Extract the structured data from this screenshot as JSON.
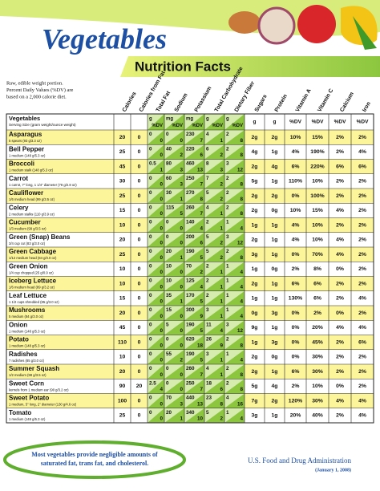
{
  "header": {
    "title": "Vegetables",
    "subtitle": "Nutrition Facts",
    "note": [
      "Raw, edible weight portion.",
      "Percent Daily Values (%DV) are",
      "based on a 2,000 calorie diet."
    ]
  },
  "table": {
    "name_header": "Vegetables",
    "serving_header": "Serving Size (gram weight/ounce weight)",
    "columns": [
      {
        "label": "Calories"
      },
      {
        "label": "Calories from Fat"
      },
      {
        "label": "Total Fat",
        "units": [
          "g",
          "%DV"
        ]
      },
      {
        "label": "Sodium",
        "units": [
          "mg",
          "%DV"
        ]
      },
      {
        "label": "Potassium",
        "units": [
          "mg",
          "%DV"
        ]
      },
      {
        "label": "Total Carbohydrate",
        "units": [
          "g",
          "%DV"
        ]
      },
      {
        "label": "Dietary Fiber",
        "units": [
          "g",
          "%DV"
        ]
      },
      {
        "label": "Sugars",
        "unit": "g"
      },
      {
        "label": "Protein",
        "unit": "g"
      },
      {
        "label": "Vitamin A",
        "unit": "%DV"
      },
      {
        "label": "Vitamin C",
        "unit": "%DV"
      },
      {
        "label": "Calcium",
        "unit": "%DV"
      },
      {
        "label": "Iron",
        "unit": "%DV"
      }
    ],
    "rows": [
      {
        "name": "Asparagus",
        "serving": "5 spears (93 g/3.3 oz)",
        "cells": [
          "20",
          "0",
          [
            "0",
            "0"
          ],
          [
            "0",
            "0"
          ],
          [
            "230",
            "7"
          ],
          [
            "4",
            "1"
          ],
          [
            "2",
            "8"
          ],
          "2g",
          "2g",
          "10%",
          "15%",
          "2%",
          "2%"
        ]
      },
      {
        "name": "Bell Pepper",
        "serving": "1 medium (148 g/5.3 oz)",
        "cells": [
          "25",
          "0",
          [
            "0",
            "0"
          ],
          [
            "40",
            "2"
          ],
          [
            "220",
            "6"
          ],
          [
            "6",
            "2"
          ],
          [
            "2",
            "8"
          ],
          "4g",
          "1g",
          "4%",
          "190%",
          "2%",
          "4%"
        ]
      },
      {
        "name": "Broccoli",
        "serving": "1 medium stalk (148 g/5.3 oz)",
        "cells": [
          "45",
          "0",
          [
            "0.5",
            "1"
          ],
          [
            "80",
            "3"
          ],
          [
            "460",
            "13"
          ],
          [
            "8",
            "3"
          ],
          [
            "3",
            "12"
          ],
          "2g",
          "4g",
          "6%",
          "220%",
          "6%",
          "6%"
        ]
      },
      {
        "name": "Carrot",
        "serving": "1 carrot, 7\" long, 1 1/4\" diameter (78 g/2.8 oz)",
        "cells": [
          "30",
          "0",
          [
            "0",
            "0"
          ],
          [
            "60",
            "3"
          ],
          [
            "250",
            "7"
          ],
          [
            "7",
            "2"
          ],
          [
            "2",
            "8"
          ],
          "5g",
          "1g",
          "110%",
          "10%",
          "2%",
          "2%"
        ]
      },
      {
        "name": "Cauliflower",
        "serving": "1/6 medium head (99 g/3.5 oz)",
        "cells": [
          "25",
          "0",
          [
            "0",
            "0"
          ],
          [
            "30",
            "1"
          ],
          [
            "270",
            "8"
          ],
          [
            "5",
            "2"
          ],
          [
            "2",
            "8"
          ],
          "2g",
          "2g",
          "0%",
          "100%",
          "2%",
          "2%"
        ]
      },
      {
        "name": "Celery",
        "serving": "2 medium stalks (110 g/3.9 oz)",
        "cells": [
          "15",
          "0",
          [
            "0",
            "0"
          ],
          [
            "115",
            "5"
          ],
          [
            "260",
            "7"
          ],
          [
            "4",
            "1"
          ],
          [
            "2",
            "8"
          ],
          "2g",
          "0g",
          "10%",
          "15%",
          "4%",
          "2%"
        ]
      },
      {
        "name": "Cucumber",
        "serving": "1/3 medium (99 g/3.5 oz)",
        "cells": [
          "10",
          "0",
          [
            "0",
            "0"
          ],
          [
            "0",
            "0"
          ],
          [
            "140",
            "4"
          ],
          [
            "2",
            "1"
          ],
          [
            "1",
            "4"
          ],
          "1g",
          "1g",
          "4%",
          "10%",
          "2%",
          "2%"
        ]
      },
      {
        "name": "Green (Snap) Beans",
        "serving": "3/4 cup cut (83 g/3.0 oz)",
        "cells": [
          "20",
          "0",
          [
            "0",
            "0"
          ],
          [
            "0",
            "0"
          ],
          [
            "200",
            "6"
          ],
          [
            "5",
            "2"
          ],
          [
            "3",
            "12"
          ],
          "2g",
          "1g",
          "4%",
          "10%",
          "4%",
          "2%"
        ]
      },
      {
        "name": "Green Cabbage",
        "serving": "1/12 medium head (84 g/3.0 oz)",
        "cells": [
          "25",
          "0",
          [
            "0",
            "0"
          ],
          [
            "20",
            "1"
          ],
          [
            "190",
            "5"
          ],
          [
            "5",
            "2"
          ],
          [
            "2",
            "8"
          ],
          "3g",
          "1g",
          "0%",
          "70%",
          "4%",
          "2%"
        ]
      },
      {
        "name": "Green Onion",
        "serving": "1/4 cup chopped (25 g/0.9 oz)",
        "cells": [
          "10",
          "0",
          [
            "0",
            "0"
          ],
          [
            "10",
            "0"
          ],
          [
            "70",
            "2"
          ],
          [
            "2",
            "1"
          ],
          [
            "1",
            "4"
          ],
          "1g",
          "0g",
          "2%",
          "8%",
          "0%",
          "2%"
        ]
      },
      {
        "name": "Iceberg Lettuce",
        "serving": "1/6 medium head (89 g/3.2 oz)",
        "cells": [
          "10",
          "0",
          [
            "0",
            "0"
          ],
          [
            "10",
            "0"
          ],
          [
            "125",
            "4"
          ],
          [
            "2",
            "1"
          ],
          [
            "1",
            "4"
          ],
          "2g",
          "1g",
          "6%",
          "6%",
          "2%",
          "2%"
        ]
      },
      {
        "name": "Leaf Lettuce",
        "serving": "1 1/2 cups shredded (85 g/3.0 oz)",
        "cells": [
          "15",
          "0",
          [
            "0",
            "0"
          ],
          [
            "35",
            "1"
          ],
          [
            "170",
            "5"
          ],
          [
            "2",
            "1"
          ],
          [
            "1",
            "4"
          ],
          "1g",
          "1g",
          "130%",
          "6%",
          "2%",
          "4%"
        ]
      },
      {
        "name": "Mushrooms",
        "serving": "5 medium (84 g/3.0 oz)",
        "cells": [
          "20",
          "0",
          [
            "0",
            "0"
          ],
          [
            "15",
            "0"
          ],
          [
            "300",
            "9"
          ],
          [
            "3",
            "1"
          ],
          [
            "1",
            "4"
          ],
          "0g",
          "3g",
          "0%",
          "2%",
          "0%",
          "2%"
        ]
      },
      {
        "name": "Onion",
        "serving": "1 medium (148 g/5.3 oz)",
        "cells": [
          "45",
          "0",
          [
            "0",
            "0"
          ],
          [
            "5",
            "0"
          ],
          [
            "190",
            "5"
          ],
          [
            "11",
            "4"
          ],
          [
            "3",
            "12"
          ],
          "9g",
          "1g",
          "0%",
          "20%",
          "4%",
          "4%"
        ]
      },
      {
        "name": "Potato",
        "serving": "1 medium (148 g/5.3 oz)",
        "cells": [
          "110",
          "0",
          [
            "0",
            "0"
          ],
          [
            "0",
            "0"
          ],
          [
            "620",
            "18"
          ],
          [
            "26",
            "9"
          ],
          [
            "2",
            "8"
          ],
          "1g",
          "3g",
          "0%",
          "45%",
          "2%",
          "6%"
        ]
      },
      {
        "name": "Radishes",
        "serving": "7 radishes (85 g/3.0 oz)",
        "cells": [
          "10",
          "0",
          [
            "0",
            "0"
          ],
          [
            "55",
            "2"
          ],
          [
            "190",
            "5"
          ],
          [
            "3",
            "1"
          ],
          [
            "1",
            "4"
          ],
          "2g",
          "0g",
          "0%",
          "30%",
          "2%",
          "2%"
        ]
      },
      {
        "name": "Summer Squash",
        "serving": "1/2 medium (98 g/3.5 oz)",
        "cells": [
          "20",
          "0",
          [
            "0",
            "0"
          ],
          [
            "0",
            "0"
          ],
          [
            "260",
            "7"
          ],
          [
            "4",
            "1"
          ],
          [
            "2",
            "8"
          ],
          "2g",
          "1g",
          "6%",
          "30%",
          "2%",
          "2%"
        ]
      },
      {
        "name": "Sweet Corn",
        "serving": "kernels from 1 medium ear (90 g/3.2 oz)",
        "cells": [
          "90",
          "20",
          [
            "2.5",
            "4"
          ],
          [
            "0",
            "0"
          ],
          [
            "250",
            "7"
          ],
          [
            "18",
            "6"
          ],
          [
            "2",
            "8"
          ],
          "5g",
          "4g",
          "2%",
          "10%",
          "0%",
          "2%"
        ]
      },
      {
        "name": "Sweet Potato",
        "serving": "1 medium, 5\" long, 2\" diameter (130 g/4.6 oz)",
        "cells": [
          "100",
          "0",
          [
            "0",
            "0"
          ],
          [
            "70",
            "3"
          ],
          [
            "440",
            "13"
          ],
          [
            "23",
            "8"
          ],
          [
            "4",
            "16"
          ],
          "7g",
          "2g",
          "120%",
          "30%",
          "4%",
          "4%"
        ]
      },
      {
        "name": "Tomato",
        "serving": "1 medium (148 g/5.3 oz)",
        "cells": [
          "25",
          "0",
          [
            "0",
            "0"
          ],
          [
            "20",
            "1"
          ],
          [
            "340",
            "10"
          ],
          [
            "5",
            "2"
          ],
          [
            "1",
            "4"
          ],
          "3g",
          "1g",
          "20%",
          "40%",
          "2%",
          "4%"
        ]
      }
    ]
  },
  "footer": {
    "note": [
      "Most vegetables provide negligible amounts of",
      "saturated fat, trans fat, and cholesterol."
    ],
    "source": "U.S. Food and Drug Administration",
    "date": "(January 1, 2008)"
  }
}
